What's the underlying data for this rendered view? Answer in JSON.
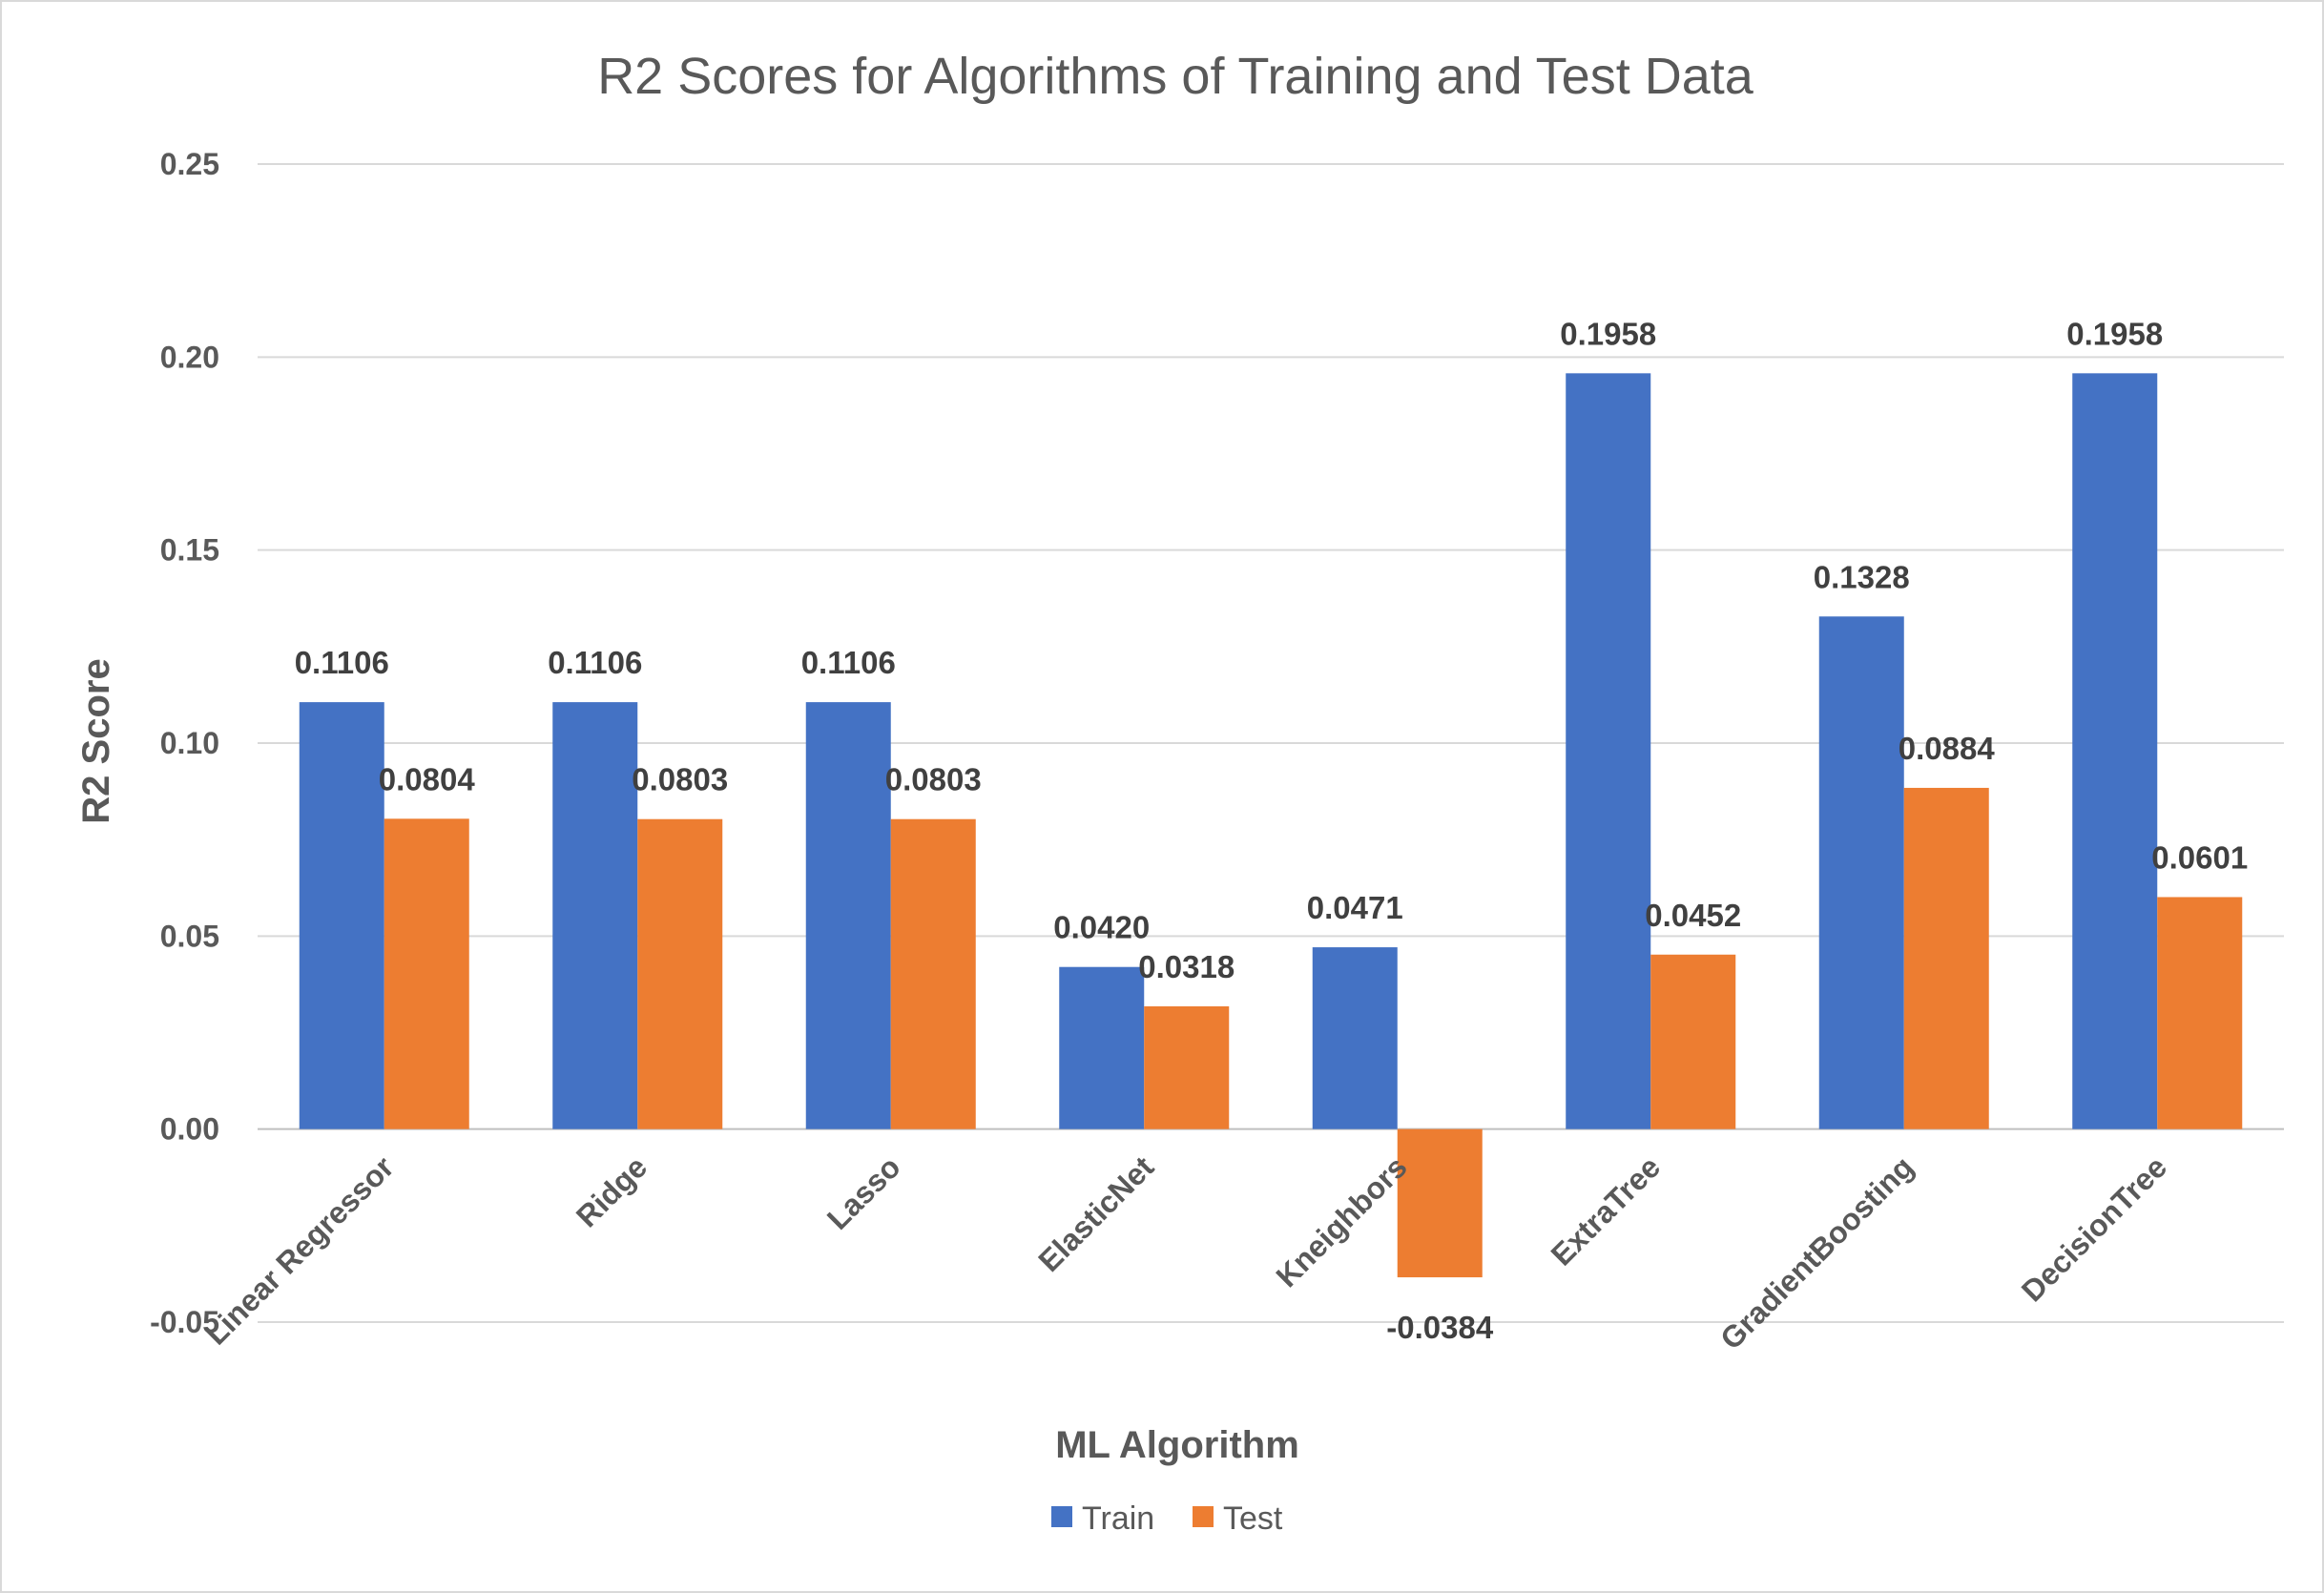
{
  "chart_data": {
    "type": "bar",
    "title": "R2 Scores for Algorithms of Training and Test Data",
    "xlabel": "ML Algorithm",
    "ylabel": "R2 Score",
    "ylim": [
      -0.05,
      0.25
    ],
    "yticks": [
      "-0.05",
      "0.00",
      "0.05",
      "0.10",
      "0.15",
      "0.20",
      "0.25"
    ],
    "ytick_values": [
      -0.05,
      0.0,
      0.05,
      0.1,
      0.15,
      0.2,
      0.25
    ],
    "categories": [
      "Linear Regressor",
      "Ridge",
      "Lasso",
      "ElasticNet",
      "Kneighbors",
      "ExtraTree",
      "GradientBoosting",
      "DecisionTree"
    ],
    "series": [
      {
        "name": "Train",
        "color": "#4472c4",
        "values": [
          0.1106,
          0.1106,
          0.1106,
          0.042,
          0.0471,
          0.1958,
          0.1328,
          0.1958
        ],
        "labels": [
          "0.1106",
          "0.1106",
          "0.1106",
          "0.0420",
          "0.0471",
          "0.1958",
          "0.1328",
          "0.1958"
        ]
      },
      {
        "name": "Test",
        "color": "#ed7d31",
        "values": [
          0.0804,
          0.0803,
          0.0803,
          0.0318,
          -0.0384,
          0.0452,
          0.0884,
          0.0601
        ],
        "labels": [
          "0.0804",
          "0.0803",
          "0.0803",
          "0.0318",
          "-0.0384",
          "0.0452",
          "0.0884",
          "0.0601"
        ]
      }
    ],
    "grid": true,
    "legend": "bottom"
  }
}
